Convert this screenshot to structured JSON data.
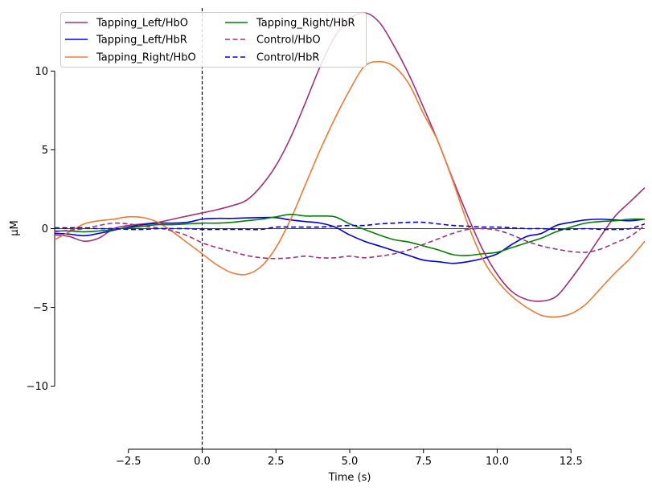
{
  "chart_data": {
    "type": "line",
    "xlabel": "Time (s)",
    "ylabel": "µM",
    "xlim": [
      -5,
      15
    ],
    "ylim": [
      -14,
      14
    ],
    "x_ticks": [
      -2.5,
      0,
      2.5,
      5,
      7.5,
      10,
      12.5
    ],
    "x_tick_labels": [
      "−2.5",
      "0.0",
      "2.5",
      "5.0",
      "7.5",
      "10.0",
      "12.5"
    ],
    "y_ticks": [
      -10,
      -5,
      0,
      5,
      10
    ],
    "y_tick_labels": [
      "−10",
      "−5",
      "0",
      "5",
      "10"
    ],
    "grid": false,
    "legend_position": "top-left",
    "annotations": [
      {
        "type": "vline",
        "x": 0,
        "style": "dashed",
        "color": "#000000"
      },
      {
        "type": "hline",
        "y": 0,
        "style": "solid",
        "color": "#000000"
      }
    ],
    "series": [
      {
        "name": "Tapping_Left/HbO",
        "color": "#a3307a",
        "dash": "solid",
        "points": [
          [
            -5,
            -0.4
          ],
          [
            -4.5,
            -0.5
          ],
          [
            -4,
            -0.8
          ],
          [
            -3.5,
            -0.6
          ],
          [
            -3,
            0
          ],
          [
            -2.5,
            0.2
          ],
          [
            -2,
            0.3
          ],
          [
            -1.5,
            0.4
          ],
          [
            -1,
            0.6
          ],
          [
            -0.5,
            0.8
          ],
          [
            0,
            1.0
          ],
          [
            0.5,
            1.2
          ],
          [
            1,
            1.45
          ],
          [
            1.5,
            1.8
          ],
          [
            2,
            2.7
          ],
          [
            2.5,
            4.0
          ],
          [
            3,
            5.8
          ],
          [
            3.5,
            8.0
          ],
          [
            4,
            10.3
          ],
          [
            4.5,
            12.2
          ],
          [
            5,
            13.3
          ],
          [
            5.5,
            13.7
          ],
          [
            6,
            13.1
          ],
          [
            6.5,
            11.6
          ],
          [
            7,
            9.8
          ],
          [
            7.5,
            7.7
          ],
          [
            8,
            5.5
          ],
          [
            8.5,
            3.1
          ],
          [
            9,
            0.8
          ],
          [
            9.5,
            -1.3
          ],
          [
            10,
            -2.9
          ],
          [
            10.5,
            -4.0
          ],
          [
            11,
            -4.5
          ],
          [
            11.5,
            -4.6
          ],
          [
            12,
            -4.3
          ],
          [
            12.5,
            -3.2
          ],
          [
            13,
            -1.9
          ],
          [
            13.5,
            -0.5
          ],
          [
            14,
            0.8
          ],
          [
            14.5,
            1.7
          ],
          [
            15,
            2.6
          ]
        ]
      },
      {
        "name": "Tapping_Left/HbR",
        "color": "#0000dd",
        "dash": "solid",
        "points": [
          [
            -5,
            -0.3
          ],
          [
            -4.5,
            -0.35
          ],
          [
            -4,
            -0.45
          ],
          [
            -3.5,
            -0.3
          ],
          [
            -3,
            -0.1
          ],
          [
            -2.5,
            0.1
          ],
          [
            -2,
            0.25
          ],
          [
            -1.5,
            0.35
          ],
          [
            -1,
            0.35
          ],
          [
            -0.5,
            0.4
          ],
          [
            0,
            0.6
          ],
          [
            0.5,
            0.65
          ],
          [
            1,
            0.65
          ],
          [
            1.5,
            0.68
          ],
          [
            2,
            0.7
          ],
          [
            2.5,
            0.7
          ],
          [
            3,
            0.55
          ],
          [
            3.5,
            0.45
          ],
          [
            4,
            0.35
          ],
          [
            4.5,
            0.1
          ],
          [
            5,
            -0.4
          ],
          [
            5.5,
            -0.8
          ],
          [
            6,
            -1.1
          ],
          [
            6.5,
            -1.4
          ],
          [
            7,
            -1.7
          ],
          [
            7.5,
            -2.0
          ],
          [
            8,
            -2.1
          ],
          [
            8.5,
            -2.2
          ],
          [
            9,
            -2.1
          ],
          [
            9.5,
            -1.9
          ],
          [
            10,
            -1.6
          ],
          [
            10.5,
            -1.0
          ],
          [
            11,
            -0.5
          ],
          [
            11.5,
            -0.3
          ],
          [
            12,
            0.2
          ],
          [
            12.5,
            0.4
          ],
          [
            13,
            0.55
          ],
          [
            13.5,
            0.6
          ],
          [
            14,
            0.55
          ],
          [
            14.5,
            0.5
          ],
          [
            15,
            0.6
          ]
        ]
      },
      {
        "name": "Tapping_Right/HbO",
        "color": "#ef7b30",
        "dash": "solid",
        "points": [
          [
            -5,
            -0.7
          ],
          [
            -4.5,
            -0.2
          ],
          [
            -4,
            0.3
          ],
          [
            -3.5,
            0.5
          ],
          [
            -3,
            0.6
          ],
          [
            -2.5,
            0.75
          ],
          [
            -2,
            0.7
          ],
          [
            -1.5,
            0.4
          ],
          [
            -1,
            -0.2
          ],
          [
            -0.5,
            -0.9
          ],
          [
            0,
            -1.6
          ],
          [
            0.5,
            -2.3
          ],
          [
            1,
            -2.8
          ],
          [
            1.5,
            -2.9
          ],
          [
            2,
            -2.4
          ],
          [
            2.5,
            -1.2
          ],
          [
            3,
            0.6
          ],
          [
            3.5,
            2.8
          ],
          [
            4,
            5.0
          ],
          [
            4.5,
            7.0
          ],
          [
            5,
            8.8
          ],
          [
            5.5,
            10.3
          ],
          [
            6,
            10.6
          ],
          [
            6.5,
            10.3
          ],
          [
            7,
            9.2
          ],
          [
            7.5,
            7.3
          ],
          [
            8,
            5.5
          ],
          [
            8.5,
            3.0
          ],
          [
            9,
            0.3
          ],
          [
            9.5,
            -1.9
          ],
          [
            10,
            -3.3
          ],
          [
            10.5,
            -4.3
          ],
          [
            11,
            -5.0
          ],
          [
            11.5,
            -5.5
          ],
          [
            12,
            -5.6
          ],
          [
            12.5,
            -5.4
          ],
          [
            13,
            -4.8
          ],
          [
            13.5,
            -3.8
          ],
          [
            14,
            -2.8
          ],
          [
            14.5,
            -1.9
          ],
          [
            15,
            -0.8
          ]
        ]
      },
      {
        "name": "Tapping_Right/HbR",
        "color": "#008000",
        "dash": "solid",
        "points": [
          [
            -5,
            -0.15
          ],
          [
            -4.5,
            -0.15
          ],
          [
            -4,
            -0.2
          ],
          [
            -3.5,
            -0.15
          ],
          [
            -3,
            -0.05
          ],
          [
            -2.5,
            0.05
          ],
          [
            -2,
            0.15
          ],
          [
            -1.5,
            0.25
          ],
          [
            -1,
            0.25
          ],
          [
            -0.5,
            0.3
          ],
          [
            0,
            0.35
          ],
          [
            0.5,
            0.35
          ],
          [
            1,
            0.4
          ],
          [
            1.5,
            0.5
          ],
          [
            2,
            0.6
          ],
          [
            2.5,
            0.75
          ],
          [
            3,
            0.9
          ],
          [
            3.5,
            0.8
          ],
          [
            4,
            0.8
          ],
          [
            4.5,
            0.75
          ],
          [
            5,
            0.3
          ],
          [
            5.5,
            -0.05
          ],
          [
            6,
            -0.4
          ],
          [
            6.5,
            -0.7
          ],
          [
            7,
            -0.85
          ],
          [
            7.5,
            -1.1
          ],
          [
            8,
            -1.35
          ],
          [
            8.5,
            -1.65
          ],
          [
            9,
            -1.7
          ],
          [
            9.5,
            -1.6
          ],
          [
            10,
            -1.5
          ],
          [
            10.5,
            -1.2
          ],
          [
            11,
            -0.9
          ],
          [
            11.5,
            -0.6
          ],
          [
            12,
            -0.2
          ],
          [
            12.5,
            0.1
          ],
          [
            13,
            0.35
          ],
          [
            13.5,
            0.45
          ],
          [
            14,
            0.5
          ],
          [
            14.5,
            0.6
          ],
          [
            15,
            0.6
          ]
        ]
      },
      {
        "name": "Control/HbO",
        "color": "#a3307a",
        "dash": "dashed",
        "points": [
          [
            -5,
            -0.2
          ],
          [
            -4.5,
            -0.1
          ],
          [
            -4,
            0.0
          ],
          [
            -3.5,
            0.2
          ],
          [
            -3,
            0.35
          ],
          [
            -2.5,
            0.3
          ],
          [
            -2,
            0.15
          ],
          [
            -1.5,
            0.05
          ],
          [
            -1,
            -0.15
          ],
          [
            -0.5,
            -0.45
          ],
          [
            0,
            -0.9
          ],
          [
            0.5,
            -1.2
          ],
          [
            1,
            -1.45
          ],
          [
            1.5,
            -1.7
          ],
          [
            2,
            -1.85
          ],
          [
            2.5,
            -1.9
          ],
          [
            3,
            -1.85
          ],
          [
            3.5,
            -1.75
          ],
          [
            4,
            -1.85
          ],
          [
            4.5,
            -1.85
          ],
          [
            5,
            -1.75
          ],
          [
            5.5,
            -1.85
          ],
          [
            6,
            -1.75
          ],
          [
            6.5,
            -1.6
          ],
          [
            7,
            -1.35
          ],
          [
            7.5,
            -1.0
          ],
          [
            8,
            -0.65
          ],
          [
            8.5,
            -0.3
          ],
          [
            9,
            -0.05
          ],
          [
            9.5,
            0.0
          ],
          [
            10,
            -0.1
          ],
          [
            10.5,
            -0.4
          ],
          [
            11,
            -0.8
          ],
          [
            11.5,
            -1.1
          ],
          [
            12,
            -1.3
          ],
          [
            12.5,
            -1.45
          ],
          [
            13,
            -1.5
          ],
          [
            13.5,
            -1.3
          ],
          [
            14,
            -0.9
          ],
          [
            14.5,
            -0.5
          ],
          [
            15,
            0.2
          ]
        ]
      },
      {
        "name": "Control/HbR",
        "color": "#0000dd",
        "dash": "dashed",
        "points": [
          [
            -5,
            0.05
          ],
          [
            -4.5,
            0.05
          ],
          [
            -4,
            0.05
          ],
          [
            -3.5,
            0.0
          ],
          [
            -3,
            0.0
          ],
          [
            -2.5,
            -0.05
          ],
          [
            -2,
            -0.05
          ],
          [
            -1.5,
            0.0
          ],
          [
            -1,
            0.0
          ],
          [
            -0.5,
            0.0
          ],
          [
            0,
            -0.05
          ],
          [
            0.5,
            -0.05
          ],
          [
            1,
            -0.05
          ],
          [
            1.5,
            -0.05
          ],
          [
            2,
            -0.05
          ],
          [
            2.5,
            0.1
          ],
          [
            3,
            0.1
          ],
          [
            3.5,
            0.1
          ],
          [
            4,
            0.1
          ],
          [
            4.5,
            0.15
          ],
          [
            5,
            0.2
          ],
          [
            5.5,
            0.2
          ],
          [
            6,
            0.3
          ],
          [
            6.5,
            0.35
          ],
          [
            7,
            0.4
          ],
          [
            7.5,
            0.4
          ],
          [
            8,
            0.3
          ],
          [
            8.5,
            0.2
          ],
          [
            9,
            0.15
          ],
          [
            9.5,
            0.1
          ],
          [
            10,
            0.1
          ],
          [
            10.5,
            0.05
          ],
          [
            11,
            0.0
          ],
          [
            11.5,
            0.0
          ],
          [
            12,
            -0.05
          ],
          [
            12.5,
            -0.05
          ],
          [
            13,
            0.0
          ],
          [
            13.5,
            -0.05
          ],
          [
            14,
            -0.05
          ],
          [
            14.5,
            0.0
          ],
          [
            15,
            0.3
          ]
        ]
      }
    ]
  }
}
